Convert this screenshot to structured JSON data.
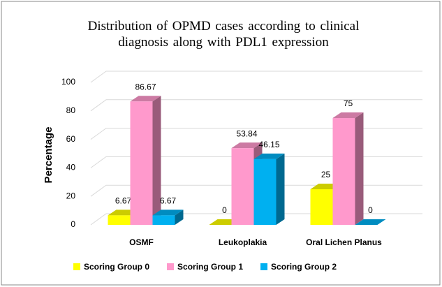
{
  "chart_data": {
    "type": "bar3d",
    "title": "Distribution of OPMD cases according to clinical diagnosis along with PDL1 expression",
    "y_label": "Percentage",
    "categories": [
      "OSMF",
      "Leukoplakia",
      "Oral Lichen Planus"
    ],
    "series": [
      {
        "name": "Scoring Group 0",
        "color": "#ffff00",
        "values": [
          6.67,
          0,
          25
        ]
      },
      {
        "name": "Scoring Group 1",
        "color": "#ff99cc",
        "values": [
          86.67,
          53.84,
          75
        ]
      },
      {
        "name": "Scoring Group 2",
        "color": "#00b0f0",
        "values": [
          6.67,
          46.15,
          0
        ]
      }
    ],
    "ylim": [
      0,
      100
    ],
    "yticks": [
      0,
      20,
      40,
      60,
      80,
      100
    ],
    "grid": true,
    "legend": "bottom"
  }
}
